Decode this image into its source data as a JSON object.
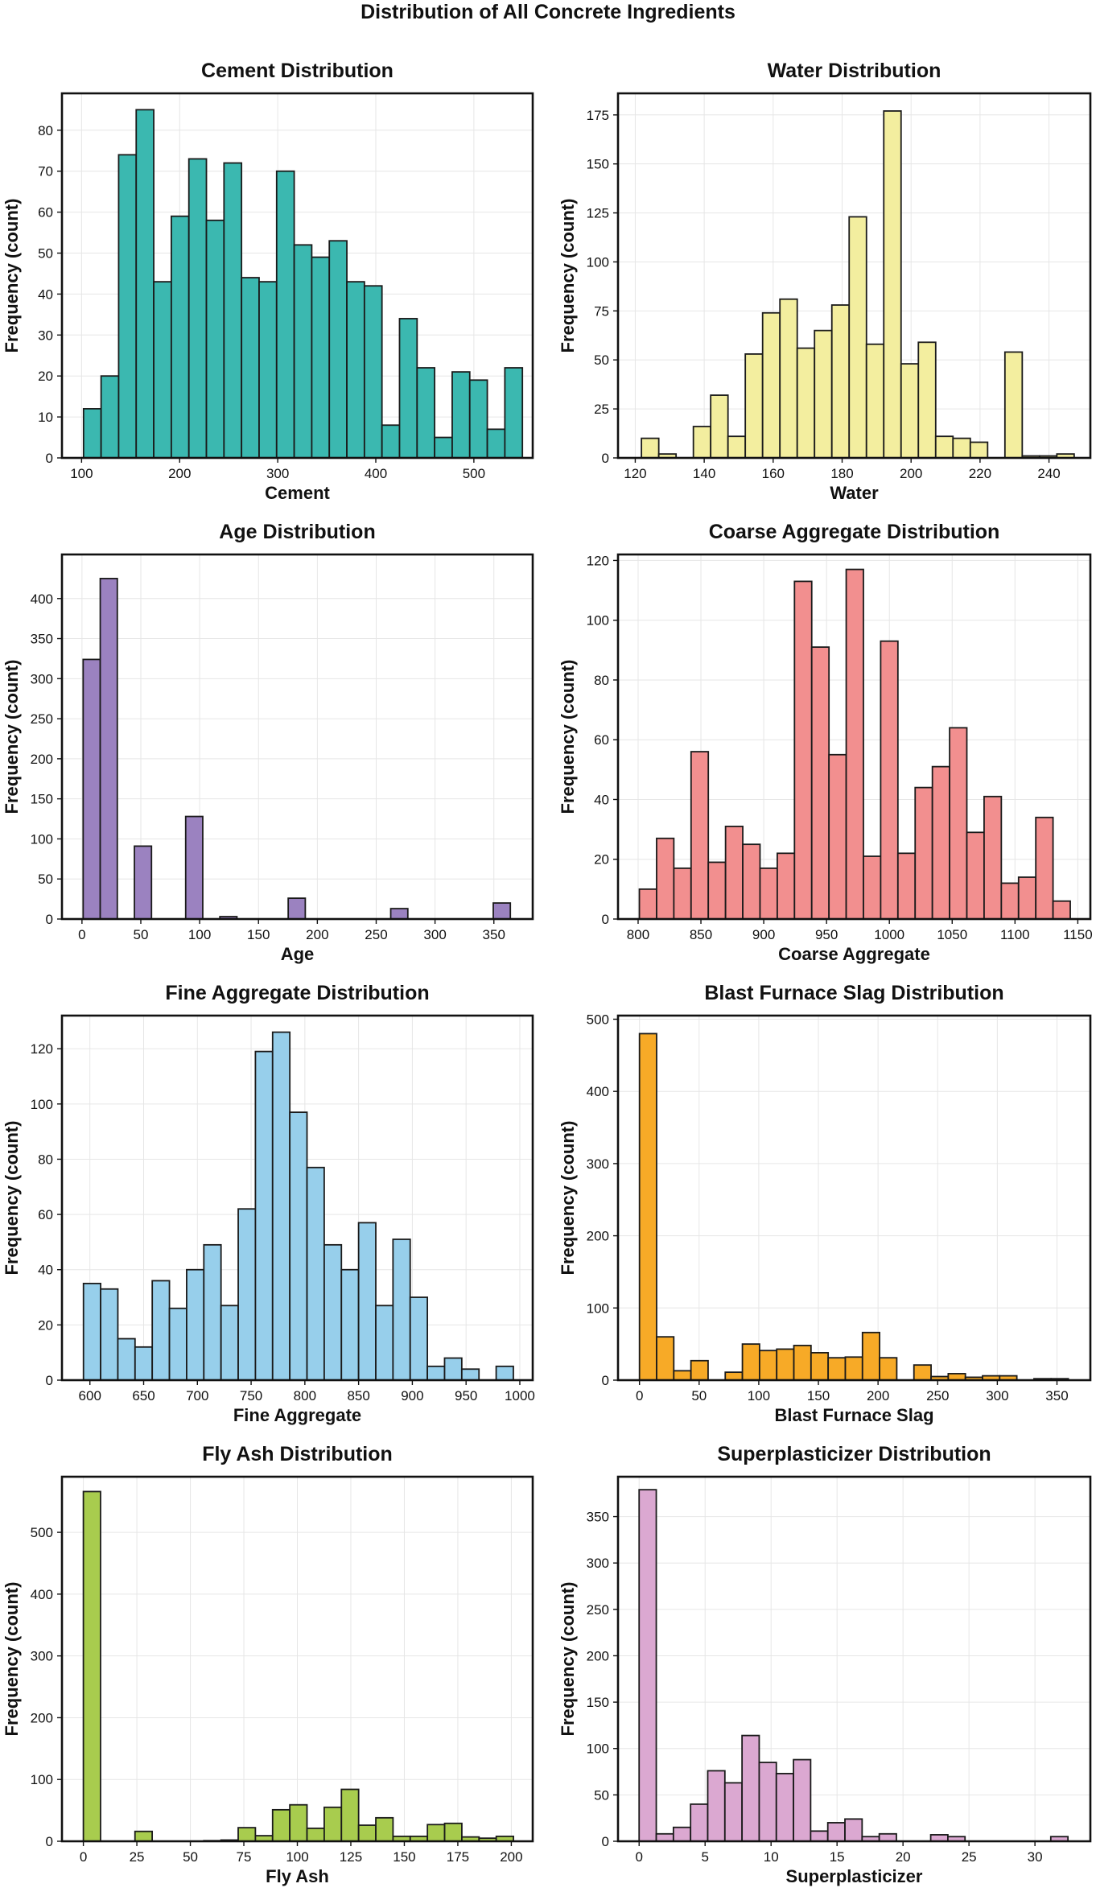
{
  "figure": {
    "title": "Distribution of All Concrete Ingredients",
    "ylabel": "Frequency (count)"
  },
  "chart_data": [
    {
      "type": "bar",
      "title": "Cement Distribution",
      "xlabel": "Cement",
      "ylabel": "Frequency (count)",
      "color": "#3bb8b0",
      "xlim": [
        80,
        560
      ],
      "ylim": [
        0,
        89
      ],
      "xticks": [
        100,
        200,
        300,
        400,
        500
      ],
      "yticks": [
        0,
        10,
        20,
        30,
        40,
        50,
        60,
        70,
        80
      ],
      "bin_start": 102,
      "bin_width": 17.9,
      "values": [
        12,
        20,
        74,
        85,
        43,
        59,
        73,
        58,
        72,
        44,
        43,
        70,
        52,
        49,
        53,
        43,
        42,
        8,
        34,
        22,
        5,
        21,
        19,
        7,
        22
      ]
    },
    {
      "type": "bar",
      "title": "Water Distribution",
      "xlabel": "Water",
      "ylabel": "Frequency (count)",
      "color": "#f3ee9f",
      "xlim": [
        115,
        252
      ],
      "ylim": [
        0,
        186
      ],
      "xticks": [
        120,
        140,
        160,
        180,
        200,
        220,
        240
      ],
      "yticks": [
        0,
        25,
        50,
        75,
        100,
        125,
        150,
        175
      ],
      "bin_start": 121.8,
      "bin_width": 5.02,
      "values": [
        10,
        2,
        0,
        16,
        32,
        11,
        53,
        74,
        81,
        56,
        65,
        78,
        123,
        58,
        177,
        48,
        59,
        11,
        10,
        8,
        0,
        54,
        1,
        1,
        2
      ]
    },
    {
      "type": "bar",
      "title": "Age Distribution",
      "xlabel": "Age",
      "ylabel": "Frequency (count)",
      "color": "#9b82c0",
      "xlim": [
        -17,
        383
      ],
      "ylim": [
        0,
        455
      ],
      "xticks": [
        0,
        50,
        100,
        150,
        200,
        250,
        300,
        350
      ],
      "yticks": [
        0,
        50,
        100,
        150,
        200,
        250,
        300,
        350,
        400
      ],
      "bin_start": 1,
      "bin_width": 14.52,
      "values": [
        324,
        425,
        0,
        91,
        0,
        0,
        128,
        0,
        3,
        0,
        0,
        0,
        26,
        0,
        0,
        0,
        0,
        0,
        13,
        0,
        0,
        0,
        0,
        0,
        20
      ]
    },
    {
      "type": "bar",
      "title": "Coarse Aggregate Distribution",
      "xlabel": "Coarse Aggregate",
      "ylabel": "Frequency (count)",
      "color": "#f28f8f",
      "xlim": [
        784,
        1160
      ],
      "ylim": [
        0,
        122
      ],
      "xticks": [
        800,
        850,
        900,
        950,
        1000,
        1050,
        1100,
        1150
      ],
      "yticks": [
        0,
        20,
        40,
        60,
        80,
        100,
        120
      ],
      "bin_start": 801,
      "bin_width": 13.72,
      "values": [
        10,
        27,
        17,
        56,
        19,
        31,
        25,
        17,
        22,
        113,
        91,
        55,
        117,
        21,
        93,
        22,
        44,
        51,
        64,
        29,
        41,
        12,
        14,
        34,
        6
      ]
    },
    {
      "type": "bar",
      "title": "Fine Aggregate Distribution",
      "xlabel": "Fine Aggregate",
      "ylabel": "Frequency (count)",
      "color": "#97cfeb",
      "xlim": [
        574,
        1012
      ],
      "ylim": [
        0,
        132
      ],
      "xticks": [
        600,
        650,
        700,
        750,
        800,
        850,
        900,
        950,
        1000
      ],
      "yticks": [
        0,
        20,
        40,
        60,
        80,
        100,
        120
      ],
      "bin_start": 594,
      "bin_width": 16.0,
      "values": [
        35,
        33,
        15,
        12,
        36,
        26,
        40,
        49,
        27,
        62,
        119,
        126,
        97,
        77,
        49,
        40,
        57,
        27,
        51,
        30,
        5,
        8,
        4,
        0,
        5
      ]
    },
    {
      "type": "bar",
      "title": "Blast Furnace Slag Distribution",
      "xlabel": "Blast Furnace Slag",
      "ylabel": "Frequency (count)",
      "color": "#f7aa27",
      "xlim": [
        -18,
        378
      ],
      "ylim": [
        0,
        505
      ],
      "xticks": [
        0,
        50,
        100,
        150,
        200,
        250,
        300,
        350
      ],
      "yticks": [
        0,
        100,
        200,
        300,
        400,
        500
      ],
      "bin_start": 0,
      "bin_width": 14.38,
      "values": [
        480,
        60,
        13,
        27,
        0,
        11,
        50,
        41,
        43,
        48,
        38,
        31,
        32,
        66,
        31,
        0,
        21,
        5,
        9,
        4,
        6,
        6,
        0,
        2,
        2
      ]
    },
    {
      "type": "bar",
      "title": "Fly Ash Distribution",
      "xlabel": "Fly Ash",
      "ylabel": "Frequency (count)",
      "color": "#a8cc4e",
      "xlim": [
        -10,
        210
      ],
      "ylim": [
        0,
        590
      ],
      "xticks": [
        0,
        25,
        50,
        75,
        100,
        125,
        150,
        175,
        200
      ],
      "yticks": [
        0,
        100,
        200,
        300,
        400,
        500
      ],
      "bin_start": 0,
      "bin_width": 8.04,
      "values": [
        566,
        0,
        0,
        16,
        0,
        0,
        0,
        1,
        2,
        22,
        9,
        51,
        59,
        21,
        55,
        84,
        26,
        38,
        8,
        8,
        27,
        29,
        7,
        5,
        8
      ]
    },
    {
      "type": "bar",
      "title": "Superplasticizer Distribution",
      "xlabel": "Superplasticizer",
      "ylabel": "Frequency (count)",
      "color": "#dba8d1",
      "xlim": [
        -1.6,
        34.2
      ],
      "ylim": [
        0,
        393
      ],
      "xticks": [
        0,
        5,
        10,
        15,
        20,
        25,
        30
      ],
      "yticks": [
        0,
        50,
        100,
        150,
        200,
        250,
        300,
        350
      ],
      "bin_start": 0,
      "bin_width": 1.3,
      "values": [
        379,
        8,
        15,
        40,
        76,
        63,
        114,
        85,
        73,
        88,
        11,
        20,
        24,
        5,
        8,
        0,
        0,
        7,
        5,
        0,
        0,
        0,
        0,
        0,
        5
      ]
    }
  ]
}
